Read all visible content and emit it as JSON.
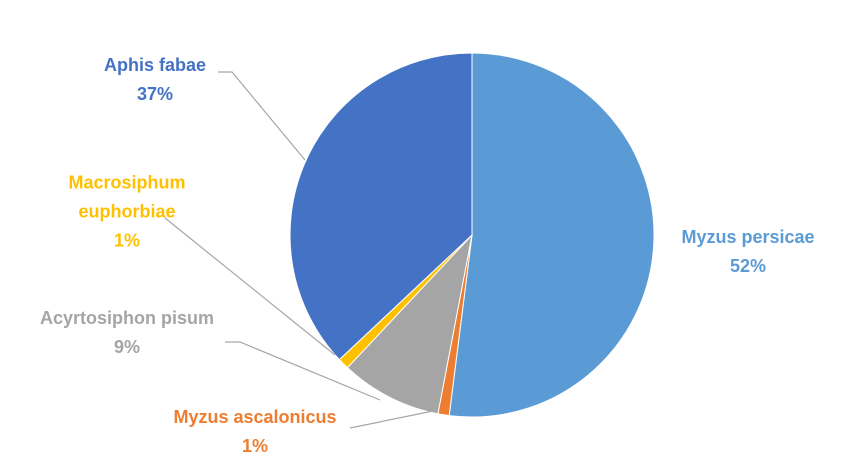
{
  "chart_data": {
    "type": "pie",
    "categories": [
      "Myzus persicae",
      "Myzus ascalonicus",
      "Acyrtosiphon pisum",
      "Macrosiphum euphorbiae",
      "Aphis fabae"
    ],
    "values": [
      52,
      1,
      9,
      1,
      37
    ],
    "value_labels": [
      "52%",
      "1%",
      "9%",
      "1%",
      "37%"
    ],
    "colors": [
      "#5b9bd5",
      "#ed7d31",
      "#a5a5a5",
      "#ffc000",
      "#4472c4"
    ]
  }
}
